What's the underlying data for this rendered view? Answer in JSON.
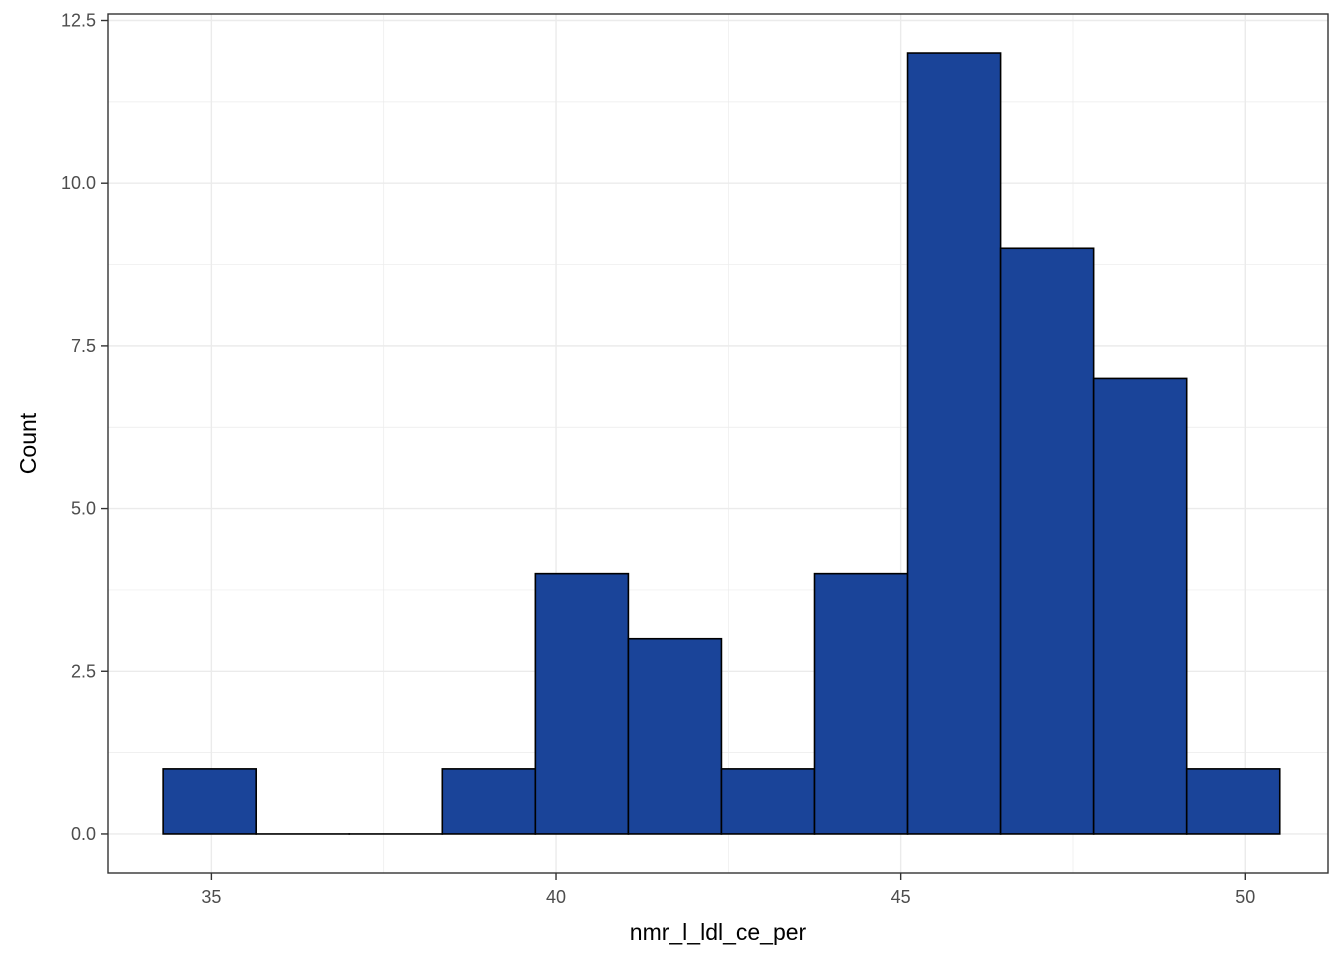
{
  "chart_data": {
    "type": "bar",
    "subtype": "histogram",
    "title": "",
    "xlabel": "nmr_l_ldl_ce_per",
    "ylabel": "Count",
    "xlim": [
      33.5,
      51.2
    ],
    "ylim": [
      -0.6,
      12.6
    ],
    "xticks": [
      35,
      40,
      45,
      50
    ],
    "xtick_labels": [
      "35",
      "40",
      "45",
      "50"
    ],
    "yticks": [
      0,
      2.5,
      5,
      7.5,
      10,
      12.5
    ],
    "ytick_labels": [
      "0.0",
      "2.5",
      "5.0",
      "7.5",
      "10.0",
      "12.5"
    ],
    "bins": [
      {
        "x0": 34.3,
        "x1": 35.65,
        "count": 1
      },
      {
        "x0": 35.65,
        "x1": 37.0,
        "count": 0
      },
      {
        "x0": 37.0,
        "x1": 38.35,
        "count": 0
      },
      {
        "x0": 38.35,
        "x1": 39.7,
        "count": 1
      },
      {
        "x0": 39.7,
        "x1": 41.05,
        "count": 4
      },
      {
        "x0": 41.05,
        "x1": 42.4,
        "count": 3
      },
      {
        "x0": 42.4,
        "x1": 43.75,
        "count": 1
      },
      {
        "x0": 43.75,
        "x1": 45.1,
        "count": 4
      },
      {
        "x0": 45.1,
        "x1": 46.45,
        "count": 12
      },
      {
        "x0": 46.45,
        "x1": 47.8,
        "count": 9
      },
      {
        "x0": 47.8,
        "x1": 49.15,
        "count": 7
      },
      {
        "x0": 49.15,
        "x1": 50.5,
        "count": 1
      }
    ],
    "grid": true,
    "legend": "none",
    "bar_fill": "#1a4499",
    "bar_edge": "#000000",
    "grid_color": "#ebebeb",
    "panel_border": "#333333"
  }
}
